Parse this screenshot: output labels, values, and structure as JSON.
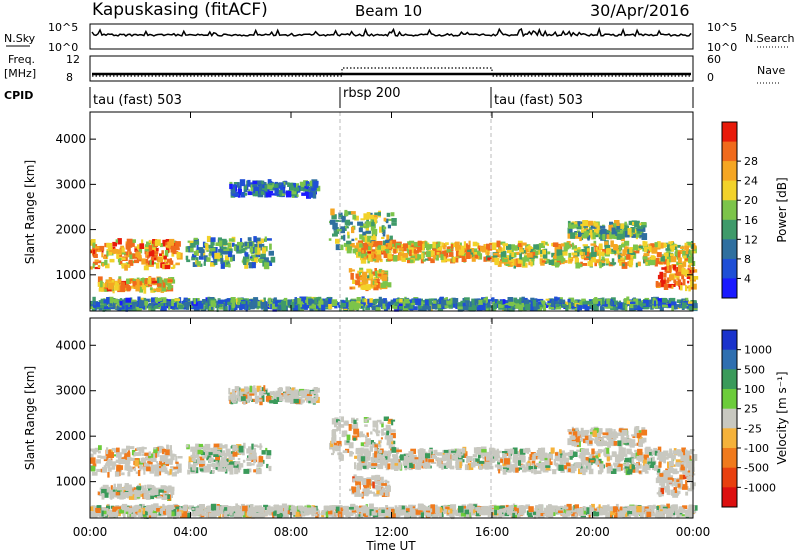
{
  "header": {
    "station": "Kapuskasing (fitACF)",
    "beam": "Beam 10",
    "date": "30/Apr/2016"
  },
  "summary_panels": {
    "nsky_label": "N.Sky",
    "nsky_ticks": [
      "10^5",
      "10^0"
    ],
    "nsearch_label": "N.Search",
    "nsearch_ticks": [
      "10^5",
      "10^0"
    ],
    "freq_label": "Freq.",
    "freq_unit": "[MHz]",
    "freq_ticks": [
      "12",
      "8"
    ],
    "nave_label": "Nave",
    "nave_ticks": [
      "60",
      "0"
    ],
    "cpid_label": "CPID"
  },
  "cpid_segments": [
    {
      "label": "tau (fast) 503",
      "start_h": 0,
      "end_h": 10
    },
    {
      "label": "rbsp 200",
      "start_h": 10,
      "end_h": 16
    },
    {
      "label": "tau (fast) 503",
      "start_h": 16,
      "end_h": 24
    }
  ],
  "axes": {
    "ylabel": "Slant Range [km]",
    "yticks": [
      1000,
      2000,
      3000,
      4000
    ],
    "ylim": [
      200,
      4600
    ],
    "xlabel": "Time UT",
    "xticks": [
      "00:00",
      "04:00",
      "08:00",
      "12:00",
      "16:00",
      "20:00",
      "00:00"
    ],
    "xlim_hours": [
      0,
      24
    ]
  },
  "power_scale": {
    "label": "Power [dB]",
    "ticks": [
      "4",
      "8",
      "12",
      "16",
      "20",
      "24",
      "28"
    ],
    "colors": [
      "#1a1aff",
      "#1f4fd6",
      "#2f6f9f",
      "#3f9a6a",
      "#7cc44a",
      "#f2d22a",
      "#f5a623",
      "#f06a1c",
      "#e81a0a"
    ]
  },
  "velocity_scale": {
    "label": "Velocity [m s⁻¹]",
    "ticks": [
      "1000",
      "500",
      "100",
      "25",
      "-25",
      "-100",
      "-500",
      "-1000"
    ],
    "colors": [
      "#1a33cc",
      "#2f6fb0",
      "#3a9a5a",
      "#6ccc3a",
      "#c8c8c0",
      "#f5b23a",
      "#f07a1c",
      "#e8400f",
      "#dd1010"
    ]
  },
  "chart_data": {
    "type": "heatmap",
    "description_series": [
      {
        "name": "Power",
        "units": "dB",
        "range": [
          0,
          30
        ]
      },
      {
        "name": "Velocity",
        "units": "m/s",
        "range": [
          -1000,
          1000
        ]
      }
    ],
    "echo_bands": [
      {
        "t0": 0.0,
        "t1": 3.5,
        "r0": 1150,
        "r1": 1750,
        "power": 22,
        "velocity": -200
      },
      {
        "t0": 0.3,
        "t1": 3.2,
        "r0": 650,
        "r1": 900,
        "power": 20,
        "velocity": 0
      },
      {
        "t0": 3.8,
        "t1": 7.2,
        "r0": 1200,
        "r1": 1800,
        "power": 12,
        "velocity": 100
      },
      {
        "t0": 5.5,
        "t1": 9.0,
        "r0": 2750,
        "r1": 3050,
        "power": 8,
        "velocity": 0
      },
      {
        "t0": 9.5,
        "t1": 12.0,
        "r0": 1500,
        "r1": 2400,
        "power": 14,
        "velocity": -30
      },
      {
        "t0": 10.5,
        "t1": 16.0,
        "r0": 1300,
        "r1": 1700,
        "power": 20,
        "velocity": 0
      },
      {
        "t0": 10.3,
        "t1": 11.8,
        "r0": 700,
        "r1": 1100,
        "power": 20,
        "velocity": -300
      },
      {
        "t0": 16.0,
        "t1": 24.0,
        "r0": 1200,
        "r1": 1700,
        "power": 18,
        "velocity": 0
      },
      {
        "t0": 19.0,
        "t1": 22.0,
        "r0": 1800,
        "r1": 2150,
        "power": 14,
        "velocity": -150
      },
      {
        "t0": 22.5,
        "t1": 24.0,
        "r0": 700,
        "r1": 1200,
        "power": 24,
        "velocity": -400
      },
      {
        "t0": 0.0,
        "t1": 24.0,
        "r0": 250,
        "r1": 450,
        "power": 10,
        "velocity": 0
      }
    ]
  }
}
